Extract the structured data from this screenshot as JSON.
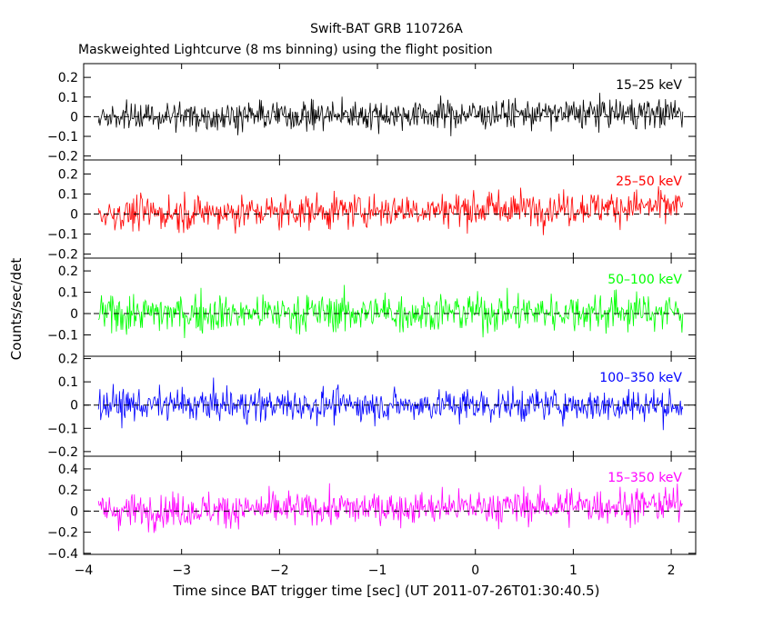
{
  "chart_data": {
    "type": "line",
    "title": "Swift-BAT GRB 110726A",
    "subtitle": "Maskweighted Lightcurve (8 ms binning) using the flight position",
    "xlabel": "Time since BAT trigger time [sec] (UT 2011-07-26T01:30:40.5)",
    "ylabel": "Counts/sec/det",
    "xlim": [
      -4.0,
      2.25
    ],
    "x_ticks": [
      "−4",
      "−3",
      "−2",
      "−1",
      "0",
      "1",
      "2"
    ],
    "data_start": -3.85,
    "data_end": 2.12,
    "bin_width": 0.008,
    "panels": [
      {
        "name": "15–25 keV",
        "color": "#000000",
        "ylim": [
          -0.22,
          0.27
        ],
        "yticks": [
          -0.2,
          -0.1,
          0,
          0.1,
          0.2
        ],
        "ytick_labels": [
          "−0.2",
          "−0.1",
          "0",
          "0.1",
          "0.2"
        ],
        "noise": 0.07,
        "trend": [
          0.0,
          0.02
        ]
      },
      {
        "name": "25–50 keV",
        "color": "#ff0000",
        "ylim": [
          -0.22,
          0.27
        ],
        "yticks": [
          -0.2,
          -0.1,
          0,
          0.1,
          0.2
        ],
        "ytick_labels": [
          "−0.2",
          "−0.1",
          "0",
          "0.1",
          "0.2"
        ],
        "noise": 0.08,
        "trend": [
          0.0,
          0.04
        ]
      },
      {
        "name": "50–100 keV",
        "color": "#00ff00",
        "ylim": [
          -0.2,
          0.26
        ],
        "yticks": [
          -0.1,
          0,
          0.1,
          0.2
        ],
        "ytick_labels": [
          "−0.1",
          "0",
          "0.1",
          "0.2"
        ],
        "noise": 0.085,
        "trend": [
          0.0,
          0.01
        ]
      },
      {
        "name": "100–350 keV",
        "color": "#0000ff",
        "ylim": [
          -0.22,
          0.21
        ],
        "yticks": [
          -0.2,
          -0.1,
          0,
          0.1,
          0.2
        ],
        "ytick_labels": [
          "−0.2",
          "−0.1",
          "0",
          "0.1",
          "0.2"
        ],
        "noise": 0.065,
        "trend": [
          0.0,
          0.0
        ]
      },
      {
        "name": "15–350 keV",
        "color": "#ff00ff",
        "ylim": [
          -0.41,
          0.52
        ],
        "yticks": [
          -0.4,
          -0.2,
          0,
          0.2,
          0.4
        ],
        "ytick_labels": [
          "−0.4",
          "−0.2",
          "0",
          "0.2",
          "0.4"
        ],
        "noise": 0.15,
        "trend": [
          0.0,
          0.06
        ]
      }
    ]
  }
}
